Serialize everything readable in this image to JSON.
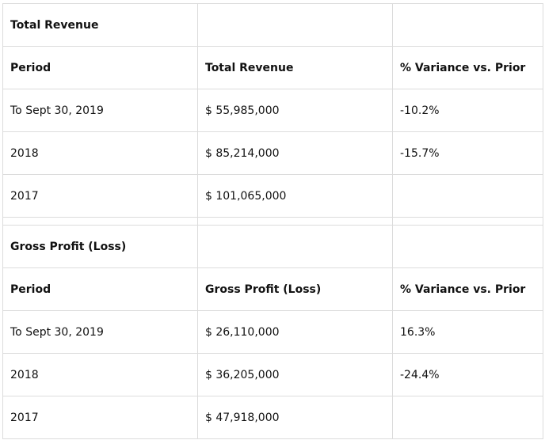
{
  "revenue": {
    "section_title": "Total Revenue",
    "headers": [
      "Period",
      "Total Revenue",
      "% Variance vs. Prior"
    ],
    "rows": [
      [
        "To Sept 30, 2019",
        "$ 55,985,000",
        "-10.2%"
      ],
      [
        "2018",
        "$ 85,214,000",
        "-15.7%"
      ],
      [
        "2017",
        "$ 101,065,000",
        ""
      ]
    ]
  },
  "gross_profit": {
    "section_title": "Gross Profit (Loss)",
    "headers": [
      "Period",
      "Gross Profit (Loss)",
      "% Variance vs. Prior"
    ],
    "rows": [
      [
        "To Sept 30, 2019",
        "$ 26,110,000",
        "16.3%"
      ],
      [
        "2018",
        "$ 36,205,000",
        "-24.4%"
      ],
      [
        "2017",
        "$ 47,918,000",
        ""
      ]
    ]
  }
}
